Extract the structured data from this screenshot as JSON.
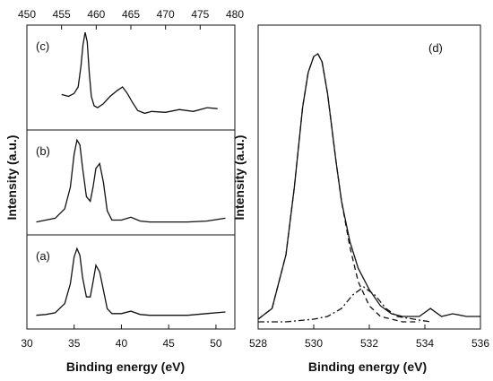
{
  "chart_data": [
    {
      "type": "line",
      "panel": "left",
      "xlabel": "Binding energy (eV)",
      "ylabel": "Intensity (a.u.)",
      "xlim_bottom": [
        30,
        52
      ],
      "xticks_bottom": [
        30,
        35,
        40,
        45,
        50
      ],
      "xlim_top": [
        450,
        480
      ],
      "xticks_top": [
        450,
        455,
        460,
        465,
        470,
        475,
        480
      ],
      "subplots": [
        {
          "label": "(c)",
          "axis": "top",
          "series": [
            {
              "x": [
                455,
                456,
                456.8,
                457.4,
                457.8,
                458.1,
                458.4,
                458.7,
                459.0,
                459.3,
                459.7,
                460.2,
                461,
                462,
                463,
                463.8,
                464.5,
                465.2,
                466,
                467,
                468,
                470,
                472,
                474,
                476,
                477.5
              ],
              "y": [
                0.32,
                0.3,
                0.33,
                0.4,
                0.62,
                0.85,
                0.98,
                0.88,
                0.55,
                0.3,
                0.2,
                0.18,
                0.22,
                0.3,
                0.36,
                0.4,
                0.33,
                0.24,
                0.15,
                0.12,
                0.14,
                0.13,
                0.16,
                0.14,
                0.18,
                0.17
              ]
            }
          ]
        },
        {
          "label": "(b)",
          "axis": "bottom",
          "series": [
            {
              "x": [
                31,
                32,
                33,
                34,
                34.6,
                35.0,
                35.3,
                35.6,
                35.9,
                36.3,
                36.7,
                37.0,
                37.3,
                37.7,
                38.1,
                38.5,
                39,
                40,
                41,
                42,
                43,
                45,
                47,
                49,
                51
              ],
              "y": [
                0.08,
                0.1,
                0.12,
                0.22,
                0.45,
                0.8,
                0.95,
                0.9,
                0.65,
                0.35,
                0.3,
                0.45,
                0.65,
                0.7,
                0.5,
                0.2,
                0.1,
                0.1,
                0.13,
                0.09,
                0.08,
                0.08,
                0.08,
                0.09,
                0.12
              ]
            }
          ]
        },
        {
          "label": "(a)",
          "axis": "bottom",
          "series": [
            {
              "x": [
                31,
                32,
                33,
                34,
                34.6,
                35.0,
                35.3,
                35.6,
                35.9,
                36.3,
                36.7,
                37.0,
                37.3,
                37.7,
                38.1,
                38.5,
                39,
                40,
                41,
                42,
                43,
                45,
                47,
                49,
                51
              ],
              "y": [
                0.1,
                0.11,
                0.13,
                0.24,
                0.48,
                0.8,
                0.9,
                0.82,
                0.55,
                0.32,
                0.32,
                0.5,
                0.7,
                0.62,
                0.4,
                0.18,
                0.12,
                0.12,
                0.15,
                0.11,
                0.1,
                0.1,
                0.1,
                0.12,
                0.14
              ]
            }
          ]
        }
      ]
    },
    {
      "type": "line",
      "panel": "right",
      "label": "(d)",
      "xlabel": "Binding energy (eV)",
      "ylabel": "Intensity (a.u.)",
      "xlim": [
        528,
        536
      ],
      "xticks": [
        528,
        530,
        532,
        534,
        536
      ],
      "series": [
        {
          "style": "solid",
          "x": [
            528,
            528.5,
            529,
            529.3,
            529.6,
            529.8,
            530.0,
            530.15,
            530.3,
            530.5,
            530.8,
            531.0,
            531.3,
            531.6,
            532.0,
            532.4,
            532.8,
            533.2,
            533.8,
            534.2,
            534.6,
            535,
            535.5,
            536
          ],
          "y": [
            0.01,
            0.05,
            0.25,
            0.5,
            0.8,
            0.93,
            0.99,
            1.0,
            0.97,
            0.85,
            0.6,
            0.45,
            0.3,
            0.2,
            0.12,
            0.06,
            0.03,
            0.02,
            0.02,
            0.05,
            0.02,
            0.03,
            0.02,
            0.02
          ]
        },
        {
          "style": "dashed",
          "x": [
            528,
            528.5,
            529,
            529.3,
            529.6,
            529.8,
            530.0,
            530.15,
            530.3,
            530.5,
            530.8,
            531.0,
            531.3,
            531.6,
            532.0,
            532.4,
            532.8,
            533.2,
            533.8
          ],
          "y": [
            0.01,
            0.05,
            0.25,
            0.5,
            0.8,
            0.93,
            0.99,
            1.0,
            0.97,
            0.85,
            0.6,
            0.45,
            0.28,
            0.15,
            0.06,
            0.02,
            0.01,
            0.0,
            0.0
          ]
        },
        {
          "style": "dash-dot",
          "x": [
            528,
            529,
            530,
            530.5,
            531,
            531.4,
            531.8,
            532.2,
            532.6,
            533,
            533.6,
            534.2
          ],
          "y": [
            0.0,
            0.0,
            0.01,
            0.02,
            0.05,
            0.1,
            0.13,
            0.1,
            0.05,
            0.02,
            0.01,
            0.0
          ]
        }
      ]
    }
  ]
}
